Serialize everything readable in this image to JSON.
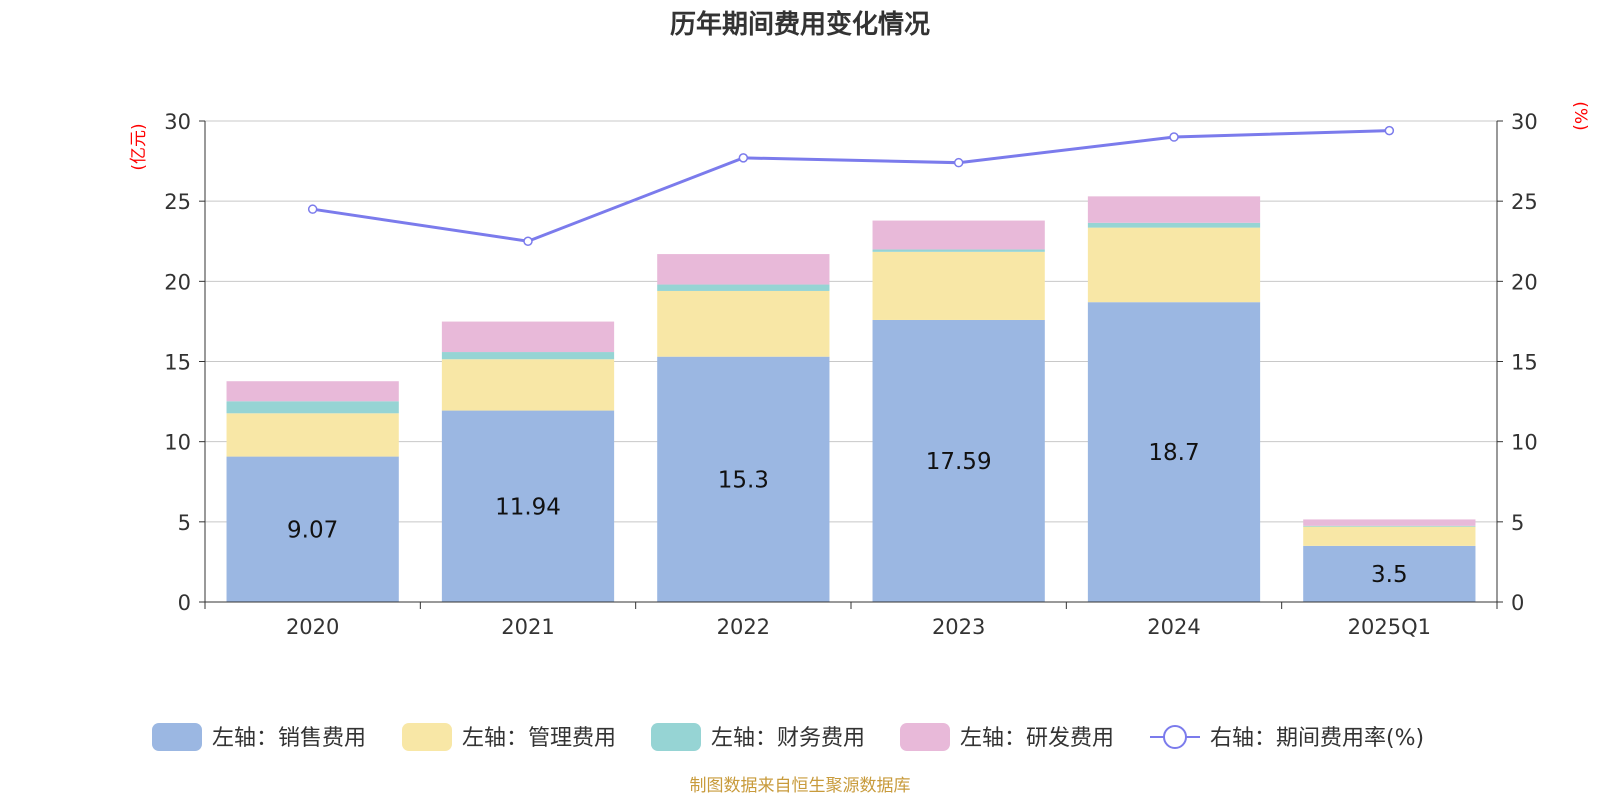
{
  "chart_data": {
    "type": "bar",
    "stacked": true,
    "title": "历年期间费用变化情况",
    "categories": [
      "2020",
      "2021",
      "2022",
      "2023",
      "2024",
      "2025Q1"
    ],
    "series": [
      {
        "name": "左轴：销售费用",
        "axis": "left",
        "color": "#9bb7e2",
        "values": [
          9.07,
          11.94,
          15.3,
          17.59,
          18.7,
          3.5
        ],
        "data_labels": [
          "9.07",
          "11.94",
          "15.3",
          "17.59",
          "18.7",
          "3.5"
        ]
      },
      {
        "name": "左轴：管理费用",
        "axis": "left",
        "color": "#f8e7a6",
        "values": [
          2.7,
          3.2,
          4.1,
          4.25,
          4.65,
          1.2
        ]
      },
      {
        "name": "左轴：财务费用",
        "axis": "left",
        "color": "#96d4d4",
        "values": [
          0.75,
          0.45,
          0.4,
          0.15,
          0.3,
          0.05
        ]
      },
      {
        "name": "左轴：研发费用",
        "axis": "left",
        "color": "#e8b9d9",
        "values": [
          1.25,
          1.9,
          1.9,
          1.8,
          1.65,
          0.4
        ]
      }
    ],
    "line": {
      "name": "右轴：期间费用率(%)",
      "axis": "right",
      "color": "#7b7bec",
      "values": [
        24.5,
        22.5,
        27.7,
        27.4,
        29.0,
        29.4
      ]
    },
    "left_axis": {
      "unit": "(亿元)",
      "min": 0,
      "max": 30,
      "ticks": [
        "0",
        "5",
        "10",
        "15",
        "20",
        "25",
        "30"
      ]
    },
    "right_axis": {
      "unit": "(%)",
      "min": 0,
      "max": 30,
      "ticks": [
        "0",
        "5",
        "10",
        "15",
        "20",
        "25",
        "30"
      ]
    },
    "grid": true,
    "legend_position": "bottom",
    "source": "制图数据来自恒生聚源数据库"
  }
}
